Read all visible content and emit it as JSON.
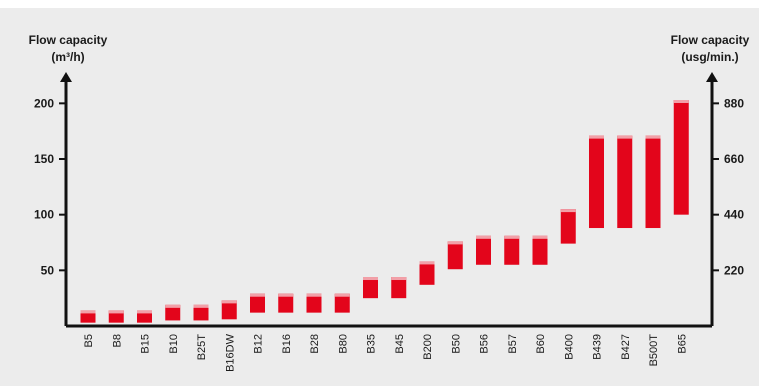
{
  "chart_data": {
    "type": "bar",
    "subtype": "floating-range",
    "left_axis": {
      "title_line1": "Flow capacity",
      "title_line2": "(m³/h)",
      "ticks": [
        50,
        100,
        150,
        200
      ],
      "range": [
        0,
        200
      ]
    },
    "right_axis": {
      "title_line1": "Flow capacity",
      "title_line2": "(usg/min.)",
      "ticks": [
        220,
        440,
        660,
        880
      ]
    },
    "categories": [
      "B5",
      "B8",
      "B15",
      "B10",
      "B25T",
      "B16DW",
      "B12",
      "B16",
      "B28",
      "B80",
      "B35",
      "B45",
      "B200",
      "B50",
      "B56",
      "B57",
      "B60",
      "B400",
      "B439",
      "B427",
      "B500T",
      "B65"
    ],
    "ranges": [
      [
        3,
        14
      ],
      [
        3,
        14
      ],
      [
        3,
        14
      ],
      [
        5,
        19
      ],
      [
        5,
        19
      ],
      [
        6,
        23
      ],
      [
        12,
        29
      ],
      [
        12,
        29
      ],
      [
        12,
        29
      ],
      [
        12,
        29
      ],
      [
        25,
        44
      ],
      [
        25,
        44
      ],
      [
        37,
        58
      ],
      [
        51,
        76
      ],
      [
        55,
        81
      ],
      [
        55,
        81
      ],
      [
        55,
        81
      ],
      [
        74,
        105
      ],
      [
        88,
        171
      ],
      [
        88,
        171
      ],
      [
        88,
        171
      ],
      [
        100,
        203
      ]
    ],
    "bar_color": "#e3051b",
    "background_color": "#ececec",
    "grid": false
  }
}
